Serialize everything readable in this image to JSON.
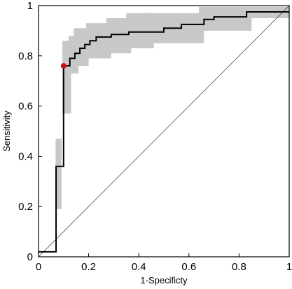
{
  "chart_data": {
    "type": "line",
    "title": "",
    "xlabel": "1-Specificty",
    "ylabel": "Sensitivity",
    "xlim": [
      0,
      1
    ],
    "ylim": [
      0,
      1
    ],
    "xticks": [
      "0",
      "0.2",
      "0.4",
      "0.6",
      "0.8",
      "1"
    ],
    "yticks": [
      "0",
      "0.2",
      "0.4",
      "0.6",
      "0.8",
      "1"
    ],
    "xtick_values": [
      0,
      0.2,
      0.4,
      0.6,
      0.8,
      1
    ],
    "ytick_values": [
      0,
      0.2,
      0.4,
      0.6,
      0.8,
      1
    ],
    "grid": false,
    "legend": false,
    "roc_curve": [
      [
        0,
        0.02
      ],
      [
        0.07,
        0.02
      ],
      [
        0.07,
        0.36
      ],
      [
        0.1,
        0.36
      ],
      [
        0.1,
        0.76
      ],
      [
        0.125,
        0.76
      ],
      [
        0.125,
        0.79
      ],
      [
        0.145,
        0.79
      ],
      [
        0.145,
        0.81
      ],
      [
        0.165,
        0.81
      ],
      [
        0.165,
        0.83
      ],
      [
        0.185,
        0.83
      ],
      [
        0.185,
        0.845
      ],
      [
        0.205,
        0.845
      ],
      [
        0.205,
        0.86
      ],
      [
        0.23,
        0.86
      ],
      [
        0.23,
        0.875
      ],
      [
        0.29,
        0.875
      ],
      [
        0.29,
        0.885
      ],
      [
        0.36,
        0.885
      ],
      [
        0.36,
        0.895
      ],
      [
        0.5,
        0.895
      ],
      [
        0.5,
        0.91
      ],
      [
        0.57,
        0.91
      ],
      [
        0.57,
        0.925
      ],
      [
        0.66,
        0.925
      ],
      [
        0.66,
        0.945
      ],
      [
        0.7,
        0.945
      ],
      [
        0.7,
        0.955
      ],
      [
        0.83,
        0.955
      ],
      [
        0.83,
        0.975
      ],
      [
        1,
        0.975
      ]
    ],
    "confidence_bands": [
      {
        "x0": 0.068,
        "x1": 0.092,
        "y0": 0.19,
        "y1": 0.47
      },
      {
        "x0": 0.095,
        "x1": 0.13,
        "y0": 0.57,
        "y1": 0.86
      },
      {
        "x0": 0.12,
        "x1": 0.16,
        "y0": 0.73,
        "y1": 0.88
      },
      {
        "x0": 0.14,
        "x1": 0.2,
        "y0": 0.76,
        "y1": 0.91
      },
      {
        "x0": 0.19,
        "x1": 0.29,
        "y0": 0.79,
        "y1": 0.93
      },
      {
        "x0": 0.27,
        "x1": 0.37,
        "y0": 0.81,
        "y1": 0.95
      },
      {
        "x0": 0.35,
        "x1": 0.46,
        "y0": 0.83,
        "y1": 0.97
      },
      {
        "x0": 0.44,
        "x1": 0.66,
        "y0": 0.85,
        "y1": 0.97
      },
      {
        "x0": 0.64,
        "x1": 0.85,
        "y0": 0.9,
        "y1": 0.995
      },
      {
        "x0": 0.83,
        "x1": 1.0,
        "y0": 0.95,
        "y1": 0.995
      }
    ],
    "reference_line": [
      [
        0,
        0
      ],
      [
        1,
        1
      ]
    ],
    "optimal_point": {
      "x": 0.1,
      "y": 0.76
    },
    "colors": {
      "curve": "#000000",
      "band": "#c8c8c8",
      "point": "#cc1111",
      "reference": "#333333"
    }
  }
}
